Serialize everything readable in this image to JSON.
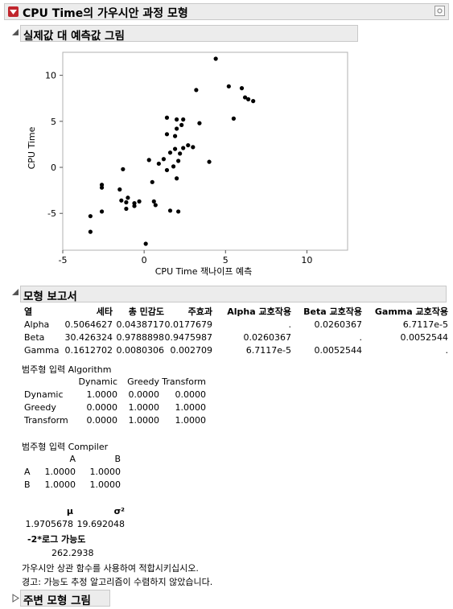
{
  "report": {
    "title": "CPU Time의 가우시안 과정 모형",
    "icons": {
      "menu": "red-triangle-menu-icon",
      "pin": "pin-icon"
    }
  },
  "actual_vs_predicted": {
    "title": "실제값 대 예측값 그림",
    "chart_data": {
      "type": "scatter",
      "xlabel": "CPU Time 잭나이프 예측",
      "ylabel": "CPU Time",
      "xlim": [
        -5,
        12.5
      ],
      "ylim": [
        -9,
        12.5
      ],
      "xticks": [
        "-5",
        "0",
        "5",
        "10"
      ],
      "xtick_values": [
        -5,
        0,
        5,
        10
      ],
      "yticks": [
        "10",
        "5",
        "0",
        "-5"
      ],
      "ytick_values": [
        10,
        5,
        0,
        -5
      ],
      "grid": false,
      "points": [
        [
          4.4,
          11.8
        ],
        [
          5.2,
          8.8
        ],
        [
          6.0,
          8.6
        ],
        [
          6.2,
          7.6
        ],
        [
          6.4,
          7.4
        ],
        [
          6.7,
          7.2
        ],
        [
          3.2,
          8.4
        ],
        [
          5.5,
          5.3
        ],
        [
          3.4,
          4.8
        ],
        [
          1.4,
          5.4
        ],
        [
          2.0,
          5.2
        ],
        [
          2.4,
          5.2
        ],
        [
          2.0,
          4.2
        ],
        [
          2.3,
          4.6
        ],
        [
          1.4,
          3.6
        ],
        [
          1.9,
          3.4
        ],
        [
          2.7,
          2.4
        ],
        [
          3.0,
          2.2
        ],
        [
          2.4,
          2.1
        ],
        [
          1.9,
          2.0
        ],
        [
          1.6,
          1.6
        ],
        [
          2.2,
          1.5
        ],
        [
          1.2,
          0.9
        ],
        [
          4.0,
          0.6
        ],
        [
          2.1,
          0.7
        ],
        [
          0.3,
          0.8
        ],
        [
          0.9,
          0.4
        ],
        [
          1.4,
          -0.3
        ],
        [
          1.8,
          0.1
        ],
        [
          2.0,
          -1.2
        ],
        [
          -1.3,
          -0.2
        ],
        [
          0.5,
          -1.6
        ],
        [
          -2.6,
          -1.9
        ],
        [
          -2.6,
          -2.2
        ],
        [
          -1.5,
          -2.4
        ],
        [
          -1.0,
          -3.3
        ],
        [
          -1.4,
          -3.6
        ],
        [
          -1.1,
          -3.8
        ],
        [
          -0.6,
          -3.9
        ],
        [
          -0.3,
          -3.7
        ],
        [
          0.6,
          -3.7
        ],
        [
          0.7,
          -4.1
        ],
        [
          -0.6,
          -4.2
        ],
        [
          -1.1,
          -4.5
        ],
        [
          1.6,
          -4.7
        ],
        [
          2.1,
          -4.8
        ],
        [
          -2.6,
          -4.8
        ],
        [
          -3.3,
          -5.3
        ],
        [
          -3.3,
          -7.0
        ],
        [
          0.1,
          -8.3
        ]
      ]
    }
  },
  "model_report": {
    "title": "모형 보고서",
    "columns": [
      "열",
      "세타",
      "총 민감도",
      "주효과",
      "Alpha 교호작용",
      "Beta 교호작용",
      "Gamma 교호작용"
    ],
    "rows": [
      [
        "Alpha",
        "0.5064627",
        "0.0438717",
        "0.0177679",
        ".",
        "0.0260367",
        "6.7117e-5"
      ],
      [
        "Beta",
        "30.426324",
        "0.9788898",
        "0.9475987",
        "0.0260367",
        ".",
        "0.0052544"
      ],
      [
        "Gamma",
        "0.1612702",
        "0.0080306",
        "0.002709",
        "6.7117e-5",
        "0.0052544",
        "."
      ]
    ],
    "algorithm": {
      "title": "범주형 입력 Algorithm",
      "columns": [
        "Dynamic",
        "Greedy",
        "Transform"
      ],
      "rows": [
        [
          "Dynamic",
          "1.0000",
          "0.0000",
          "0.0000"
        ],
        [
          "Greedy",
          "0.0000",
          "1.0000",
          "1.0000"
        ],
        [
          "Transform",
          "0.0000",
          "1.0000",
          "1.0000"
        ]
      ]
    },
    "compiler": {
      "title": "범주형 입력 Compiler",
      "columns": [
        "A",
        "B"
      ],
      "rows": [
        [
          "A",
          "1.0000",
          "1.0000"
        ],
        [
          "B",
          "1.0000",
          "1.0000"
        ]
      ]
    },
    "mu_label": "μ",
    "sigma_label": "σ²",
    "mu_value": "1.9705678",
    "sigma_value": "19.692048",
    "loglik_label": "-2*로그 가능도",
    "loglik_value": "262.2938",
    "note1": "가우시안 상관 함수를 사용하여 적합시키십시오.",
    "note2": "경고: 가능도 추정 알고리즘이 수렴하지 않았습니다."
  },
  "marginal_plot": {
    "title": "주변 모형 그림"
  }
}
